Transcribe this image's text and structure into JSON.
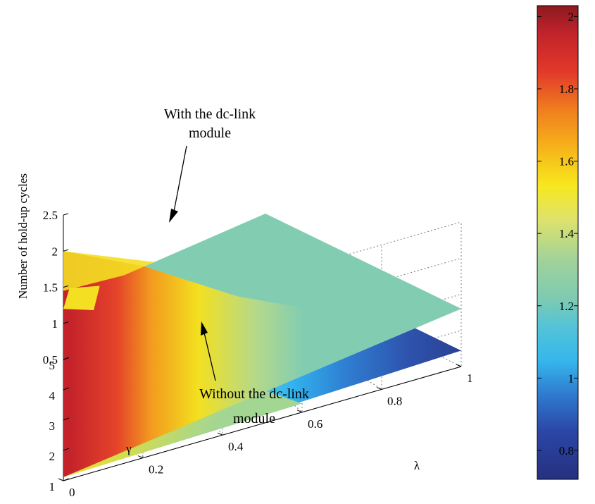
{
  "chart_data": {
    "type": "surface",
    "zlabel": "Number of hold-up cycles",
    "xlabel": "λ",
    "ylabel": "γ",
    "xlim": [
      0,
      1
    ],
    "ylim": [
      1,
      5
    ],
    "zlim": [
      0.5,
      2.5
    ],
    "x_ticks": [
      "0",
      "0.2",
      "0.4",
      "0.6",
      "0.8",
      "1"
    ],
    "y_ticks": [
      "1",
      "2",
      "3",
      "4",
      "5"
    ],
    "z_ticks": [
      "0.5",
      "1",
      "1.5",
      "2",
      "2.5"
    ],
    "colorbar": {
      "range": [
        0.72,
        2.03
      ],
      "ticks": [
        "0.8",
        "1",
        "1.2",
        "1.4",
        "1.6",
        "1.8",
        "2"
      ]
    },
    "series": [
      {
        "name": "With the dc-link module",
        "corners": {
          "lambda0_gamma5": 2.0,
          "lambda0_gamma1": 0.55,
          "lambda1_gamma5": 1.3,
          "lambda1_gamma1": 1.3
        }
      },
      {
        "name": "Without the dc-link module",
        "corners": {
          "lambda0_gamma5": 2.0,
          "lambda0_gamma1": 0.55,
          "lambda1_gamma5": 0.72,
          "lambda1_gamma1": 0.72
        }
      }
    ],
    "annotations": [
      {
        "lines": [
          "With the dc-link",
          "module"
        ]
      },
      {
        "lines": [
          "Without the dc-link",
          "module"
        ]
      }
    ],
    "grid": true,
    "colormap": "jet"
  }
}
